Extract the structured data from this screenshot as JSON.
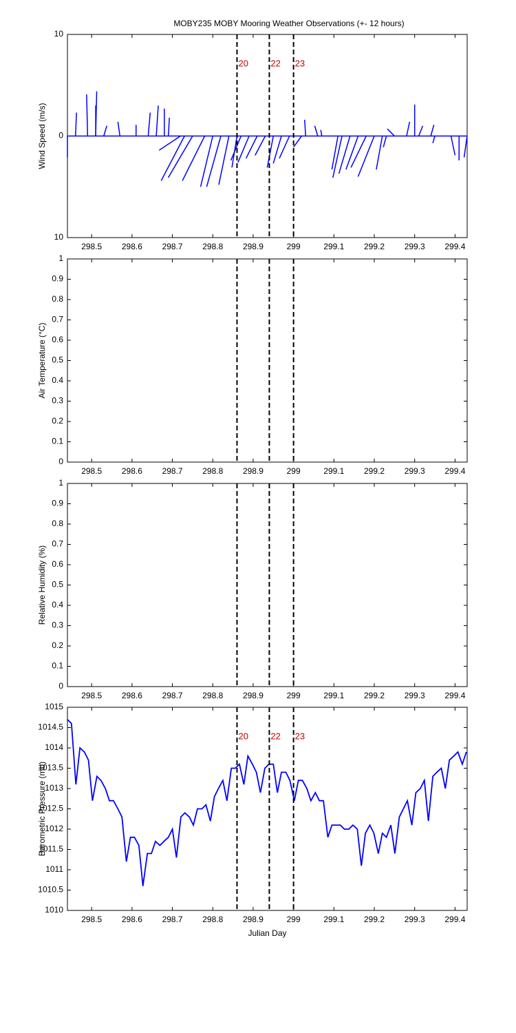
{
  "chart_data": [
    {
      "type": "stick",
      "title": "MOBY235 MOBY Mooring Weather Observations (+- 12 hours)",
      "ylabel": "Wind Speed (m/s)",
      "annotation": "N",
      "xlim": [
        298.44,
        299.43
      ],
      "xticks": [
        298.5,
        298.6,
        298.7,
        298.8,
        298.9,
        299,
        299.1,
        299.2,
        299.3,
        299.4
      ],
      "ylim": [
        -10,
        10
      ],
      "yticks": [
        {
          "value": -10,
          "label": "10"
        },
        0,
        {
          "value": 10,
          "label": "10"
        }
      ],
      "color": "#0000ff",
      "vlines": [
        {
          "value": 298.86,
          "label": "20"
        },
        {
          "value": 298.94,
          "label": "22"
        },
        {
          "value": 299.0,
          "label": "23"
        }
      ],
      "x": [
        298.44,
        298.46,
        298.49,
        298.51,
        298.51,
        298.53,
        298.57,
        298.61,
        298.64,
        298.66,
        298.68,
        298.69,
        298.72,
        298.73,
        298.75,
        298.78,
        298.8,
        298.82,
        298.84,
        298.86,
        298.87,
        298.89,
        298.91,
        298.93,
        298.95,
        298.97,
        298.99,
        299.02,
        299.03,
        299.06,
        299.07,
        299.11,
        299.12,
        299.14,
        299.16,
        299.18,
        299.2,
        299.22,
        299.23,
        299.25,
        299.28,
        299.3,
        299.31,
        299.34,
        299.35,
        299.39,
        299.41,
        299.43
      ],
      "u": [
        0,
        0.1,
        -0.1,
        0.1,
        0,
        0.3,
        -0.2,
        0,
        0.2,
        0.2,
        0,
        0.1,
        -2.1,
        -2.3,
        -2.4,
        -2.2,
        -1.2,
        -1.4,
        -1.0,
        -0.5,
        -1.0,
        -1.1,
        -1.1,
        -1.0,
        -0.6,
        -0.8,
        -1.0,
        -0.8,
        -0.1,
        -0.3,
        -0.1,
        -0.6,
        -0.9,
        -1.1,
        -1.2,
        -1.5,
        -1.6,
        -0.6,
        -0.3,
        -0.7,
        0.3,
        0,
        0.4,
        0.3,
        -0.2,
        0.4,
        0,
        -0.3
      ],
      "v": [
        -2.1,
        2.3,
        4.1,
        4.4,
        3.0,
        1.0,
        1.4,
        1.1,
        2.3,
        3.0,
        2.7,
        1.8,
        -1.4,
        -4.4,
        -4.1,
        -4.4,
        -5.0,
        -5.0,
        -4.8,
        -3.1,
        -2.4,
        -2.6,
        -2.2,
        -1.9,
        -3.1,
        -2.7,
        -2.2,
        -1.1,
        1.6,
        1.0,
        0.6,
        -3.3,
        -4.1,
        -3.7,
        -3.3,
        -3.1,
        -4.0,
        -3.3,
        -1.1,
        0.7,
        1.4,
        3.1,
        1.0,
        1.1,
        -0.7,
        -1.9,
        -2.4,
        -2.1
      ]
    },
    {
      "type": "line",
      "ylabel": "Air Temperature (°C)",
      "xlim": [
        298.44,
        299.43
      ],
      "xticks": [
        298.5,
        298.6,
        298.7,
        298.8,
        298.9,
        299,
        299.1,
        299.2,
        299.3,
        299.4
      ],
      "ylim": [
        0,
        1
      ],
      "yticks": [
        0,
        0.1,
        0.2,
        0.3,
        0.4,
        0.5,
        0.6,
        0.7,
        0.8,
        0.9,
        1
      ],
      "vlines": [
        298.86,
        298.94,
        299.0
      ]
    },
    {
      "type": "line",
      "ylabel": "Relative Humidity (%)",
      "xlim": [
        298.44,
        299.43
      ],
      "xticks": [
        298.5,
        298.6,
        298.7,
        298.8,
        298.9,
        299,
        299.1,
        299.2,
        299.3,
        299.4
      ],
      "ylim": [
        0,
        1
      ],
      "yticks": [
        0,
        0.1,
        0.2,
        0.3,
        0.4,
        0.5,
        0.6,
        0.7,
        0.8,
        0.9,
        1
      ],
      "vlines": [
        298.86,
        298.94,
        299.0
      ]
    },
    {
      "type": "line",
      "ylabel": "Barometric Pressure (mb)",
      "xlabel": "Julian Day",
      "xlim": [
        298.44,
        299.43
      ],
      "xticks": [
        298.5,
        298.6,
        298.7,
        298.8,
        298.9,
        299,
        299.1,
        299.2,
        299.3,
        299.4
      ],
      "ylim": [
        1010,
        1015
      ],
      "yticks": [
        1010,
        1010.5,
        1011,
        1011.5,
        1012,
        1012.5,
        1013,
        1013.5,
        1014,
        1014.5,
        1015
      ],
      "vlines": [
        {
          "value": 298.86,
          "label": "20"
        },
        {
          "value": 298.94,
          "label": "22"
        },
        {
          "value": 299.0,
          "label": "23"
        }
      ],
      "x": [
        298.44,
        298.45,
        298.461,
        298.471,
        298.482,
        298.492,
        298.502,
        298.513,
        298.523,
        298.534,
        298.544,
        298.554,
        298.565,
        298.575,
        298.586,
        298.596,
        298.606,
        298.617,
        298.627,
        298.638,
        298.648,
        298.658,
        298.669,
        298.679,
        298.69,
        298.7,
        298.71,
        298.721,
        298.731,
        298.742,
        298.752,
        298.762,
        298.773,
        298.783,
        298.794,
        298.804,
        298.814,
        298.825,
        298.835,
        298.846,
        298.856,
        298.866,
        298.877,
        298.887,
        298.898,
        298.908,
        298.918,
        298.929,
        298.939,
        298.95,
        298.96,
        298.97,
        298.981,
        298.991,
        299.002,
        299.012,
        299.022,
        299.033,
        299.043,
        299.054,
        299.064,
        299.074,
        299.085,
        299.095,
        299.106,
        299.116,
        299.126,
        299.137,
        299.147,
        299.158,
        299.168,
        299.178,
        299.189,
        299.199,
        299.21,
        299.22,
        299.23,
        299.241,
        299.251,
        299.262,
        299.272,
        299.282,
        299.293,
        299.303,
        299.314,
        299.324,
        299.334,
        299.345,
        299.355,
        299.366,
        299.376,
        299.386,
        299.397,
        299.407,
        299.418,
        299.428
      ],
      "series": [
        {
          "color": "#0000ff",
          "values": [
            1014.7,
            1014.6,
            1013.1,
            1014.0,
            1013.9,
            1013.7,
            1012.7,
            1013.3,
            1013.2,
            1013.0,
            1012.7,
            1012.7,
            1012.5,
            1012.3,
            1011.2,
            1011.8,
            1011.8,
            1011.6,
            1010.6,
            1011.4,
            1011.4,
            1011.7,
            1011.6,
            1011.7,
            1011.8,
            1012.0,
            1011.3,
            1012.3,
            1012.4,
            1012.3,
            1012.1,
            1012.5,
            1012.5,
            1012.6,
            1012.2,
            1012.8,
            1013.0,
            1013.2,
            1012.7,
            1013.5,
            1013.5,
            1013.6,
            1013.1,
            1013.8,
            1013.6,
            1013.4,
            1012.9,
            1013.5,
            1013.6,
            1013.6,
            1012.9,
            1013.4,
            1013.4,
            1013.2,
            1012.7,
            1013.2,
            1013.2,
            1013.0,
            1012.7,
            1012.9,
            1012.7,
            1012.7,
            1011.8,
            1012.1,
            1012.1,
            1012.1,
            1012.0,
            1012.0,
            1012.1,
            1012.0,
            1011.1,
            1011.9,
            1012.1,
            1011.9,
            1011.4,
            1011.9,
            1011.8,
            1012.1,
            1011.4,
            1012.3,
            1012.5,
            1012.7,
            1012.1,
            1012.9,
            1013.0,
            1013.2,
            1012.2,
            1013.3,
            1013.4,
            1013.5,
            1013.0,
            1013.7,
            1013.8,
            1013.9,
            1013.6,
            1013.9
          ]
        }
      ]
    }
  ]
}
